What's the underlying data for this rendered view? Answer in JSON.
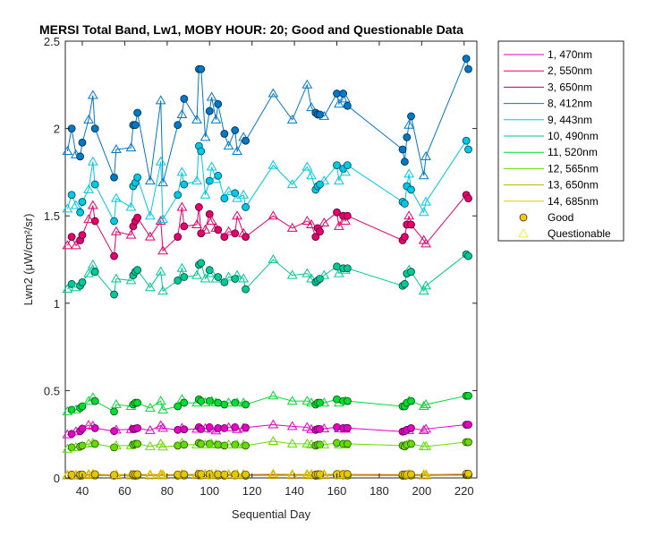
{
  "chart_data": {
    "type": "line",
    "title": "MERSI Total Band, Lw1, MOBY HOUR: 20;  Good and Questionable Data",
    "xlabel": "Sequential Day",
    "ylabel": "Lwn2 (μW/cm²/sr)",
    "xlim": [
      32,
      226
    ],
    "ylim": [
      0,
      2.5
    ],
    "xticks": [
      40,
      60,
      80,
      100,
      120,
      140,
      160,
      180,
      200,
      220
    ],
    "yticks": [
      0,
      0.5,
      1,
      1.5,
      2,
      2.5
    ],
    "grid": false,
    "legend_position": "top-right-outside",
    "x": [
      33,
      35,
      37,
      39,
      40,
      43,
      45,
      46,
      55,
      56,
      63,
      64,
      65,
      66,
      72,
      77,
      78,
      85,
      87,
      88,
      94,
      95,
      96,
      98,
      100,
      101,
      103,
      104,
      107,
      109,
      112,
      113,
      116,
      117,
      130,
      139,
      146,
      148,
      150,
      151,
      152,
      154,
      160,
      161,
      163,
      164,
      165,
      191,
      192,
      193,
      194,
      195,
      201,
      202,
      221,
      222
    ],
    "quality": [
      "Q",
      "G",
      "Q",
      "G",
      "G",
      "Q",
      "Q",
      "G",
      "G",
      "Q",
      "Q",
      "G",
      "G",
      "G",
      "Q",
      "Q",
      "Q",
      "G",
      "Q",
      "G",
      "Q",
      "G",
      "G",
      "Q",
      "G",
      "Q",
      "Q",
      "G",
      "G",
      "Q",
      "G",
      "Q",
      "Q",
      "G",
      "Q",
      "Q",
      "Q",
      "Q",
      "G",
      "G",
      "G",
      "Q",
      "G",
      "Q",
      "G",
      "Q",
      "G",
      "G",
      "G",
      "G",
      "Q",
      "G",
      "Q",
      "Q",
      "G",
      "G"
    ],
    "series": [
      {
        "name": "1, 470nm",
        "color": "#e600c8",
        "values": [
          0.248,
          0.252,
          0.265,
          0.268,
          0.282,
          0.302,
          0.298,
          0.285,
          0.268,
          0.275,
          0.278,
          0.28,
          0.282,
          0.285,
          0.272,
          0.3,
          0.285,
          0.275,
          0.285,
          0.278,
          0.28,
          0.29,
          0.28,
          0.283,
          0.29,
          0.28,
          0.27,
          0.285,
          0.285,
          0.288,
          0.29,
          0.278,
          0.285,
          0.288,
          0.305,
          0.295,
          0.29,
          0.278,
          0.275,
          0.28,
          0.28,
          0.282,
          0.29,
          0.282,
          0.285,
          0.28,
          0.286,
          0.265,
          0.268,
          0.275,
          0.272,
          0.285,
          0.272,
          0.28,
          0.305,
          0.305
        ]
      },
      {
        "name": "2, 550nm",
        "color": "#e6006e",
        "values": [
          1.33,
          1.38,
          1.33,
          1.36,
          1.39,
          1.48,
          1.56,
          1.47,
          1.27,
          1.41,
          1.39,
          1.44,
          1.47,
          1.49,
          1.38,
          1.47,
          1.3,
          1.38,
          1.55,
          1.44,
          1.45,
          1.55,
          1.4,
          1.42,
          1.51,
          1.47,
          1.43,
          1.42,
          1.38,
          1.41,
          1.4,
          1.5,
          1.4,
          1.38,
          1.5,
          1.43,
          1.47,
          1.45,
          1.38,
          1.43,
          1.41,
          1.46,
          1.52,
          1.44,
          1.5,
          1.47,
          1.5,
          1.36,
          1.38,
          1.45,
          1.5,
          1.45,
          1.36,
          1.34,
          1.62,
          1.6
        ]
      },
      {
        "name": "3, 650nm",
        "color": "#b4006e",
        "values": [
          0.015,
          0.016,
          0.015,
          0.016,
          0.017,
          0.018,
          0.018,
          0.017,
          0.015,
          0.016,
          0.016,
          0.017,
          0.016,
          0.017,
          0.016,
          0.017,
          0.016,
          0.016,
          0.017,
          0.017,
          0.017,
          0.018,
          0.017,
          0.017,
          0.018,
          0.017,
          0.017,
          0.017,
          0.016,
          0.017,
          0.017,
          0.017,
          0.017,
          0.016,
          0.018,
          0.017,
          0.017,
          0.017,
          0.016,
          0.017,
          0.017,
          0.017,
          0.018,
          0.017,
          0.017,
          0.017,
          0.017,
          0.016,
          0.016,
          0.017,
          0.017,
          0.017,
          0.016,
          0.016,
          0.019,
          0.019
        ]
      },
      {
        "name": "8, 412nm",
        "color": "#0078c8",
        "values": [
          1.87,
          2.0,
          1.85,
          1.84,
          1.92,
          2.05,
          2.19,
          2.0,
          1.72,
          1.88,
          1.89,
          2.02,
          2.02,
          2.09,
          1.7,
          2.16,
          1.69,
          2.02,
          2.08,
          2.17,
          2.05,
          2.34,
          2.34,
          1.95,
          2.1,
          2.18,
          2.05,
          2.14,
          1.97,
          1.9,
          1.99,
          1.87,
          1.95,
          1.93,
          2.2,
          2.05,
          2.25,
          2.12,
          2.09,
          2.08,
          2.08,
          2.07,
          2.2,
          2.14,
          2.2,
          2.17,
          2.13,
          1.88,
          1.81,
          1.95,
          2.02,
          2.07,
          1.73,
          1.84,
          2.4,
          2.34
        ]
      },
      {
        "name": "9, 443nm",
        "color": "#00c8e6",
        "values": [
          1.54,
          1.62,
          1.56,
          1.52,
          1.58,
          1.65,
          1.81,
          1.68,
          1.47,
          1.6,
          1.55,
          1.67,
          1.69,
          1.72,
          1.5,
          1.81,
          1.48,
          1.62,
          1.75,
          1.68,
          1.7,
          1.9,
          1.87,
          1.62,
          1.7,
          1.78,
          1.71,
          1.73,
          1.6,
          1.64,
          1.63,
          1.6,
          1.62,
          1.55,
          1.79,
          1.68,
          1.78,
          1.73,
          1.65,
          1.67,
          1.68,
          1.7,
          1.79,
          1.7,
          1.77,
          1.75,
          1.79,
          1.58,
          1.57,
          1.67,
          1.74,
          1.65,
          1.52,
          1.58,
          1.93,
          1.88
        ]
      },
      {
        "name": "10, 490nm",
        "color": "#00c896",
        "values": [
          1.08,
          1.11,
          1.09,
          1.1,
          1.12,
          1.17,
          1.22,
          1.18,
          1.05,
          1.14,
          1.13,
          1.16,
          1.18,
          1.19,
          1.09,
          1.18,
          1.07,
          1.13,
          1.2,
          1.15,
          1.16,
          1.22,
          1.23,
          1.14,
          1.19,
          1.17,
          1.14,
          1.15,
          1.12,
          1.15,
          1.14,
          1.16,
          1.14,
          1.08,
          1.25,
          1.16,
          1.17,
          1.14,
          1.12,
          1.13,
          1.14,
          1.16,
          1.21,
          1.17,
          1.2,
          1.19,
          1.2,
          1.1,
          1.11,
          1.17,
          1.19,
          1.18,
          1.07,
          1.1,
          1.28,
          1.27
        ]
      },
      {
        "name": "11, 520nm",
        "color": "#00dc32",
        "values": [
          0.38,
          0.39,
          0.39,
          0.4,
          0.41,
          0.44,
          0.46,
          0.44,
          0.38,
          0.42,
          0.41,
          0.42,
          0.43,
          0.43,
          0.4,
          0.44,
          0.39,
          0.41,
          0.45,
          0.43,
          0.43,
          0.45,
          0.44,
          0.43,
          0.44,
          0.44,
          0.43,
          0.43,
          0.42,
          0.43,
          0.43,
          0.43,
          0.43,
          0.42,
          0.47,
          0.44,
          0.44,
          0.43,
          0.42,
          0.43,
          0.43,
          0.43,
          0.45,
          0.43,
          0.44,
          0.44,
          0.44,
          0.41,
          0.41,
          0.43,
          0.44,
          0.44,
          0.41,
          0.42,
          0.47,
          0.47
        ]
      },
      {
        "name": "12, 565nm",
        "color": "#64dc00",
        "values": [
          0.165,
          0.175,
          0.175,
          0.18,
          0.185,
          0.195,
          0.2,
          0.195,
          0.175,
          0.185,
          0.185,
          0.19,
          0.195,
          0.195,
          0.18,
          0.195,
          0.178,
          0.185,
          0.2,
          0.19,
          0.19,
          0.2,
          0.195,
          0.19,
          0.195,
          0.195,
          0.19,
          0.19,
          0.185,
          0.19,
          0.19,
          0.19,
          0.19,
          0.185,
          0.21,
          0.195,
          0.195,
          0.19,
          0.185,
          0.19,
          0.19,
          0.19,
          0.2,
          0.19,
          0.195,
          0.19,
          0.195,
          0.185,
          0.18,
          0.19,
          0.195,
          0.195,
          0.18,
          0.18,
          0.205,
          0.205
        ]
      },
      {
        "name": "13, 650nm",
        "color": "#b4b400",
        "values": [
          0.012,
          0.013,
          0.012,
          0.013,
          0.014,
          0.015,
          0.015,
          0.014,
          0.012,
          0.013,
          0.013,
          0.014,
          0.013,
          0.014,
          0.013,
          0.014,
          0.013,
          0.013,
          0.014,
          0.014,
          0.014,
          0.015,
          0.014,
          0.014,
          0.015,
          0.014,
          0.014,
          0.014,
          0.013,
          0.014,
          0.014,
          0.014,
          0.014,
          0.013,
          0.015,
          0.014,
          0.014,
          0.014,
          0.013,
          0.014,
          0.014,
          0.014,
          0.015,
          0.014,
          0.014,
          0.014,
          0.014,
          0.013,
          0.013,
          0.014,
          0.014,
          0.014,
          0.013,
          0.013,
          0.016,
          0.016
        ]
      },
      {
        "name": "14, 685nm",
        "color": "#e6c800",
        "values": [
          0.018,
          0.019,
          0.018,
          0.019,
          0.02,
          0.022,
          0.023,
          0.021,
          0.018,
          0.02,
          0.019,
          0.021,
          0.02,
          0.021,
          0.019,
          0.021,
          0.019,
          0.02,
          0.022,
          0.021,
          0.021,
          0.023,
          0.022,
          0.021,
          0.022,
          0.021,
          0.021,
          0.021,
          0.02,
          0.021,
          0.021,
          0.021,
          0.021,
          0.02,
          0.023,
          0.021,
          0.022,
          0.021,
          0.02,
          0.021,
          0.021,
          0.021,
          0.022,
          0.021,
          0.022,
          0.021,
          0.022,
          0.02,
          0.02,
          0.021,
          0.022,
          0.021,
          0.02,
          0.02,
          0.024,
          0.024
        ]
      }
    ],
    "quality_legend": [
      {
        "name": "Good",
        "marker": "circle",
        "color": "#ffc800"
      },
      {
        "name": "Questionable",
        "marker": "triangle",
        "color": "#ffe640"
      }
    ]
  }
}
